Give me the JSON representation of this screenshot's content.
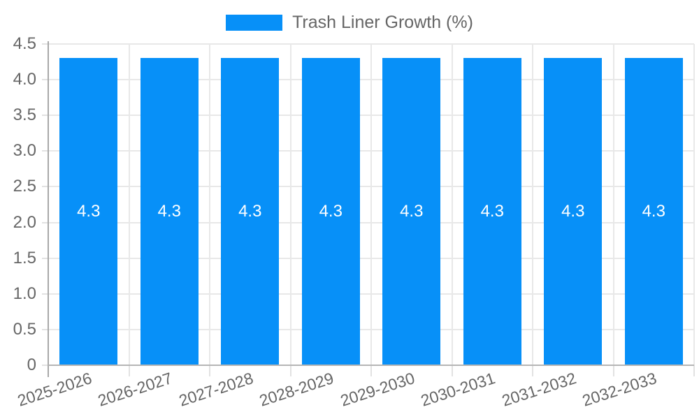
{
  "legend": {
    "label": "Trash Liner Growth (%)"
  },
  "chart_data": {
    "type": "bar",
    "title": "",
    "xlabel": "",
    "ylabel": "",
    "categories": [
      "2025-2026",
      "2026-2027",
      "2027-2028",
      "2028-2029",
      "2029-2030",
      "2030-2031",
      "2031-2032",
      "2032-2033"
    ],
    "series": [
      {
        "name": "Trash Liner Growth (%)",
        "values": [
          4.3,
          4.3,
          4.3,
          4.3,
          4.3,
          4.3,
          4.3,
          4.3
        ]
      }
    ],
    "value_label_decimals": 1,
    "ylim": [
      0,
      4.5
    ],
    "ytick_step": 0.5,
    "grid": true,
    "legend_position": "top-center",
    "colors": {
      "bar": "#0790f8",
      "grid": "#e8e8e8",
      "tick": "#e2e2e2",
      "y_axis_line": "#a9a9a9",
      "x_axis_line": "#b5b5b5",
      "text": "#666666",
      "value_label": "#ffffff",
      "background": "#ffffff"
    }
  }
}
